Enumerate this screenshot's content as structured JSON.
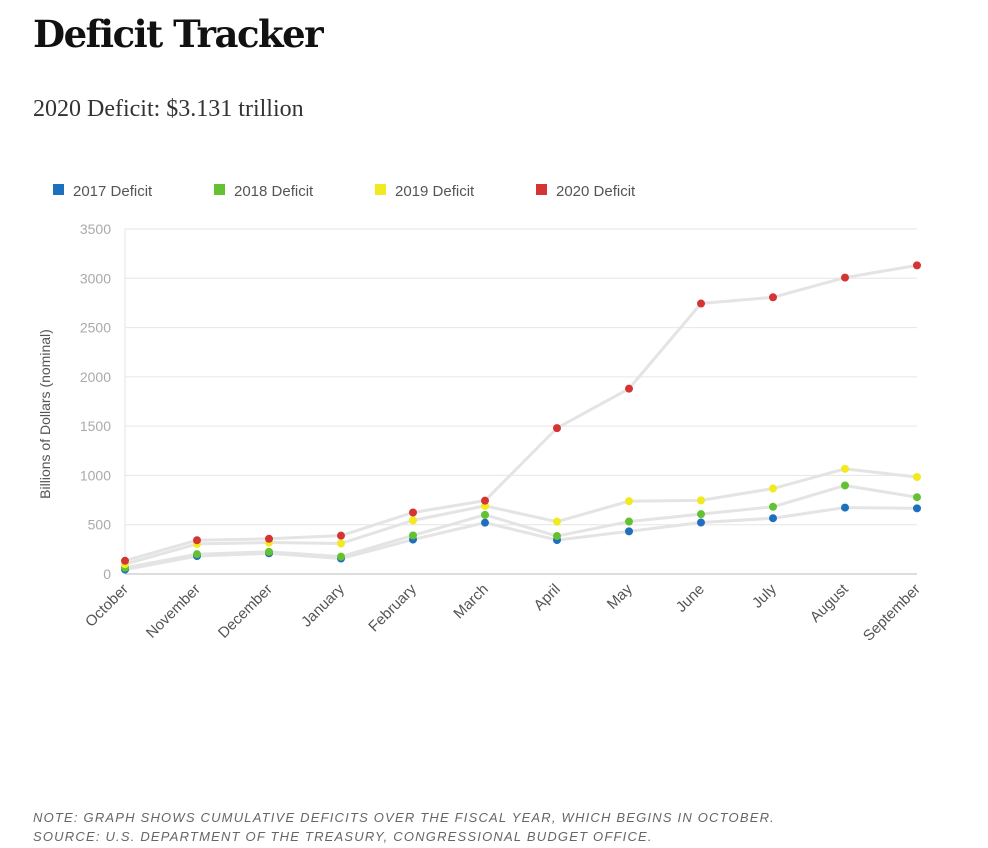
{
  "header": {
    "title": "Deficit Tracker",
    "subtitle": "2020 Deficit: $3.131 trillion"
  },
  "footer": {
    "note": "NOTE: GRAPH SHOWS CUMULATIVE DEFICITS OVER THE FISCAL YEAR, WHICH BEGINS IN OCTOBER.",
    "source": "SOURCE: U.S. DEPARTMENT OF THE TREASURY, CONGRESSIONAL BUDGET OFFICE."
  },
  "colors": {
    "line": "#e4e4e4",
    "grid": "#e6e6e6",
    "axis": "#bbbbbb"
  },
  "chart_data": {
    "type": "line",
    "title": "",
    "xlabel": "",
    "ylabel": "Billions of Dollars (nominal)",
    "categories": [
      "October",
      "November",
      "December",
      "January",
      "February",
      "March",
      "April",
      "May",
      "June",
      "July",
      "August",
      "September"
    ],
    "ylim": [
      0,
      3500
    ],
    "yticks": [
      0,
      500,
      1000,
      1500,
      2000,
      2500,
      3000,
      3500
    ],
    "grid": true,
    "legend": "top-left",
    "series": [
      {
        "name": "2017 Deficit",
        "color": "#1f6fbf",
        "values": [
          45,
          182,
          210,
          157,
          349,
          521,
          344,
          433,
          522,
          566,
          674,
          666
        ]
      },
      {
        "name": "2018 Deficit",
        "color": "#63c132",
        "values": [
          63,
          201,
          225,
          176,
          391,
          600,
          385,
          532,
          607,
          682,
          898,
          779
        ]
      },
      {
        "name": "2019 Deficit",
        "color": "#f0ea1f",
        "values": [
          100,
          305,
          319,
          310,
          544,
          691,
          531,
          739,
          747,
          867,
          1067,
          984
        ]
      },
      {
        "name": "2020 Deficit",
        "color": "#d43434",
        "values": [
          134,
          343,
          357,
          389,
          624,
          744,
          1480,
          1880,
          2744,
          2807,
          3007,
          3131
        ]
      }
    ]
  }
}
